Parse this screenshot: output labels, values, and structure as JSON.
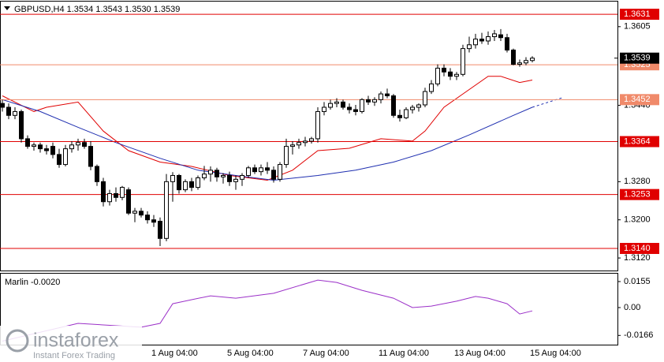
{
  "chart_data": [
    {
      "type": "candlestick",
      "title": "GBPUSD,H4  1.3534 1.3543 1.3530 1.3539",
      "categories": [
        null,
        null,
        null,
        null,
        null,
        null,
        null,
        null,
        null,
        null,
        null,
        null,
        null,
        null,
        null,
        null,
        null,
        null,
        null,
        null,
        null,
        null,
        null,
        null,
        "1 Aug 04:00",
        null,
        null,
        null,
        null,
        null,
        null,
        null,
        null,
        null,
        null,
        null,
        "5 Aug 04:00",
        null,
        null,
        null,
        null,
        null,
        null,
        null,
        null,
        null,
        null,
        null,
        "7 Aug 04:00",
        null,
        null,
        null,
        null,
        null,
        null,
        null,
        null,
        null,
        null,
        null,
        "11 Aug 04:00",
        null,
        null,
        null,
        null,
        null,
        null,
        null,
        null,
        null,
        null,
        null,
        "13 Aug 04:00",
        null,
        null,
        null,
        null,
        null,
        null,
        null,
        null,
        null,
        null,
        null,
        "15 Aug 04:00"
      ],
      "open": [
        1.3444,
        1.3436,
        1.3419,
        1.3427,
        1.337,
        1.3354,
        1.3357,
        1.3349,
        1.3354,
        1.3337,
        1.3316,
        1.3349,
        1.3357,
        1.3362,
        1.3354,
        1.3312,
        1.328,
        1.3238,
        1.3255,
        1.3247,
        1.3263,
        1.3214,
        1.3218,
        1.321,
        1.32,
        1.3197,
        1.3161,
        1.328,
        1.3293,
        1.3263,
        1.328,
        1.3268,
        1.3288,
        1.3296,
        1.3304,
        1.329,
        1.3293,
        1.328,
        1.3285,
        1.3293,
        1.3309,
        1.3301,
        1.3309,
        1.3304,
        1.3285,
        1.3316,
        1.3354,
        1.3357,
        1.3362,
        1.3365,
        1.337,
        1.3427,
        1.3436,
        1.3444,
        1.3447,
        1.3436,
        1.3431,
        1.3427,
        1.3452,
        1.3447,
        1.3452,
        1.3464,
        1.346,
        1.3419,
        1.3414,
        1.3431,
        1.3436,
        1.3441,
        1.3469,
        1.3485,
        1.3518,
        1.351,
        1.3501,
        1.3505,
        1.3559,
        1.3567,
        1.3579,
        1.3575,
        1.3584,
        1.3588,
        1.3582,
        1.3556,
        1.3526,
        1.3529,
        1.3534
      ],
      "high": [
        1.3452,
        1.3444,
        1.3436,
        1.3431,
        1.3377,
        1.3362,
        1.3362,
        1.3357,
        1.3362,
        1.3349,
        1.3357,
        1.3365,
        1.337,
        1.337,
        1.3365,
        1.3316,
        1.3288,
        1.3263,
        1.3268,
        1.3271,
        1.3268,
        1.3225,
        1.3225,
        1.3218,
        1.321,
        1.3205,
        1.3296,
        1.33,
        1.3296,
        1.3285,
        1.3288,
        1.3293,
        1.3313,
        1.3312,
        1.3309,
        1.3298,
        1.3301,
        1.3293,
        1.3298,
        1.3313,
        1.3316,
        1.3316,
        1.3321,
        1.3312,
        1.3321,
        1.337,
        1.3365,
        1.337,
        1.3374,
        1.3374,
        1.3436,
        1.3447,
        1.3452,
        1.3455,
        1.3452,
        1.3444,
        1.3441,
        1.3455,
        1.346,
        1.3457,
        1.3469,
        1.3475,
        1.3464,
        1.3431,
        1.3436,
        1.3441,
        1.3444,
        1.3477,
        1.3493,
        1.3526,
        1.3526,
        1.3518,
        1.351,
        1.3567,
        1.3584,
        1.359,
        1.3592,
        1.3595,
        1.3598,
        1.36,
        1.359,
        1.3559,
        1.3536,
        1.3541,
        1.3543
      ],
      "low": [
        1.3427,
        1.3411,
        1.3411,
        1.3362,
        1.3349,
        1.3345,
        1.3341,
        1.3337,
        1.3329,
        1.3309,
        1.3312,
        1.3341,
        1.3345,
        1.3349,
        1.3304,
        1.3271,
        1.3228,
        1.323,
        1.3238,
        1.3241,
        1.321,
        1.3195,
        1.3205,
        1.3192,
        1.3185,
        1.3145,
        1.3155,
        1.3238,
        1.3255,
        1.3258,
        1.326,
        1.3263,
        1.3283,
        1.328,
        1.328,
        1.3276,
        1.3271,
        1.3263,
        1.3271,
        1.3288,
        1.3296,
        1.3293,
        1.3296,
        1.3278,
        1.328,
        1.3309,
        1.3337,
        1.3349,
        1.3354,
        1.336,
        1.3362,
        1.3419,
        1.3431,
        1.3436,
        1.3431,
        1.3423,
        1.3419,
        1.3423,
        1.3441,
        1.3439,
        1.3444,
        1.3455,
        1.3414,
        1.3406,
        1.3411,
        1.3423,
        1.3427,
        1.3436,
        1.3464,
        1.348,
        1.3501,
        1.3493,
        1.3493,
        1.3501,
        1.3551,
        1.3559,
        1.3569,
        1.3567,
        1.3575,
        1.3575,
        1.3551,
        1.3524,
        1.3521,
        1.3524,
        1.353
      ],
      "close": [
        1.3436,
        1.3419,
        1.3427,
        1.337,
        1.3354,
        1.3357,
        1.3349,
        1.3345,
        1.3337,
        1.3316,
        1.3349,
        1.3357,
        1.3362,
        1.3354,
        1.3312,
        1.328,
        1.3238,
        1.3255,
        1.3247,
        1.3268,
        1.3214,
        1.3218,
        1.321,
        1.32,
        1.3195,
        1.3161,
        1.328,
        1.3293,
        1.3263,
        1.328,
        1.3268,
        1.3288,
        1.3296,
        1.3304,
        1.329,
        1.3293,
        1.328,
        1.3285,
        1.3293,
        1.3309,
        1.3301,
        1.3309,
        1.3304,
        1.3285,
        1.3316,
        1.3354,
        1.3357,
        1.3362,
        1.3365,
        1.337,
        1.3427,
        1.3436,
        1.3444,
        1.3447,
        1.3436,
        1.3431,
        1.3427,
        1.3452,
        1.3447,
        1.3452,
        1.3464,
        1.346,
        1.3419,
        1.3414,
        1.3431,
        1.3436,
        1.3441,
        1.3469,
        1.3485,
        1.3518,
        1.351,
        1.3501,
        1.3505,
        1.3559,
        1.3567,
        1.3579,
        1.3575,
        1.3584,
        1.359,
        1.3582,
        1.3556,
        1.3526,
        1.3529,
        1.3534,
        1.3539
      ],
      "color_up": "#ffffff",
      "color_down": "#000000",
      "lines": [
        {
          "color": "#e00000",
          "x": [
            0,
            5,
            7,
            12,
            16,
            20,
            25,
            30,
            36,
            42,
            46,
            50,
            55,
            60,
            65,
            67,
            70,
            73,
            77,
            79,
            82,
            84
          ],
          "values": [
            1.346,
            1.3427,
            1.3436,
            1.3447,
            1.3386,
            1.3345,
            1.3321,
            1.3312,
            1.3293,
            1.3283,
            1.3304,
            1.3345,
            1.335,
            1.337,
            1.3365,
            1.3386,
            1.3436,
            1.3464,
            1.3501,
            1.3501,
            1.3488,
            1.3493
          ]
        },
        {
          "color": "#1f2fb0",
          "x": [
            0,
            6,
            12,
            18,
            25,
            31,
            37,
            43,
            50,
            56,
            62,
            68,
            74,
            81,
            84
          ],
          "values": [
            1.3452,
            1.3427,
            1.3394,
            1.3362,
            1.3329,
            1.3304,
            1.3293,
            1.3283,
            1.3293,
            1.3304,
            1.3321,
            1.3345,
            1.3378,
            1.3419,
            1.3436
          ]
        },
        {
          "color": "#1f2fb0",
          "dashed": true,
          "x": [
            84,
            89
          ],
          "values": [
            1.3436,
            1.3457
          ]
        }
      ],
      "levels": [
        {
          "value": 1.3631,
          "color": "#e00000"
        },
        {
          "value": 1.3525,
          "color": "#f08a6a"
        },
        {
          "value": 1.3452,
          "color": "#f08a6a"
        },
        {
          "value": 1.3364,
          "color": "#e00000"
        },
        {
          "value": 1.3253,
          "color": "#e00000"
        },
        {
          "value": 1.314,
          "label": "1.3140",
          "color": "#e00000"
        }
      ],
      "xlim": [
        0,
        97.5
      ],
      "ylim": [
        1.30937,
        1.36576
      ],
      "yticks": [
        1.3605,
        {
          "value": 1.344,
          "label": "1.3440"
        },
        {
          "value": 1.328,
          "label": "1.3280"
        },
        {
          "value": 1.32,
          "label": "1.3200"
        },
        {
          "value": 1.312,
          "label": "1.3120"
        }
      ]
    },
    {
      "type": "line",
      "title": "Marlin -0.0020",
      "color": "#9b30c8",
      "x": [
        0,
        12,
        22,
        25,
        27,
        30,
        33,
        37,
        43,
        50,
        53,
        57,
        62,
        65,
        68,
        72,
        75,
        77,
        80,
        82,
        84
      ],
      "values": [
        -0.02,
        -0.0094,
        -0.0117,
        -0.0094,
        0.0023,
        0.0047,
        0.007,
        0.0056,
        0.0085,
        0.0164,
        0.015,
        0.0103,
        0.0056,
        0.0,
        0.0009,
        0.0038,
        0.0066,
        0.0056,
        0.0023,
        -0.0038,
        -0.002
      ],
      "xlim": [
        0,
        97.5
      ],
      "ylim": [
        -0.0221,
        0.0202
      ],
      "yticks": [
        0.0155,
        {
          "value": 0,
          "label": "0.00"
        },
        -0.0166
      ]
    }
  ],
  "watermark": {
    "name": "instaforex",
    "tagline": "Instant Forex Trading"
  }
}
